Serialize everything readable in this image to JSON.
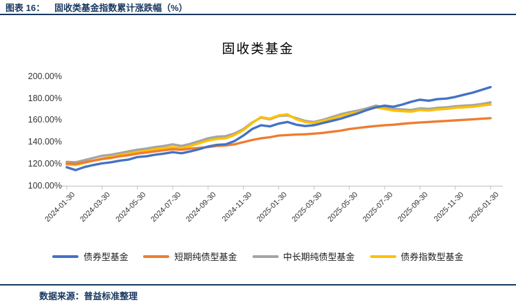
{
  "header": {
    "label": "图表 16：",
    "title": "固收类基金指数累计涨跌幅（%）"
  },
  "footer": {
    "source": "数据来源：普益标准整理"
  },
  "colors": {
    "accent_navy": "#17375E",
    "axis_line": "#BFBFBF"
  },
  "chart_data": {
    "type": "line",
    "title": "固收类基金",
    "xlabel": "",
    "ylabel": "",
    "ylim": [
      100,
      200
    ],
    "grid": false,
    "legend_position": "bottom",
    "y_tick_labels": [
      "200.00%",
      "180.00%",
      "160.00%",
      "140.00%",
      "120.00%",
      "100.00%"
    ],
    "x_tick_labels": [
      "2024-01-30",
      "2024-03-30",
      "2024-05-30",
      "2024-07-30",
      "2024-09-30",
      "2024-11-30",
      "2025-01-30",
      "2025-03-30",
      "2025-05-30",
      "2025-07-30",
      "2025-09-30",
      "2025-11-30",
      "2026-01-30"
    ],
    "x_points_per_tick": 4,
    "draw_order": [
      2,
      3,
      1,
      0
    ],
    "series": [
      {
        "key": "bond-fund",
        "name": "债券型基金",
        "color": "#4472C4",
        "values": [
          117,
          114.3,
          117.2,
          119,
          120.5,
          121.5,
          123,
          124,
          126.3,
          127,
          128.5,
          129.5,
          130.8,
          129.8,
          131.5,
          133.5,
          136,
          137.5,
          138,
          141,
          146,
          152,
          155.5,
          154.5,
          157,
          158.5,
          156,
          154.8,
          155.5,
          157.5,
          159.5,
          161.5,
          164,
          166.5,
          169.5,
          172,
          173.5,
          172.5,
          174.5,
          177,
          179,
          178,
          179.5,
          180,
          181.5,
          183.5,
          185.5,
          188,
          190.5
        ]
      },
      {
        "key": "short-term-pure-bond-fund",
        "name": "短期纯债型基金",
        "color": "#ED7D31",
        "values": [
          120.5,
          120,
          121.5,
          123,
          124.5,
          125.5,
          127,
          128,
          129.5,
          130.5,
          131.5,
          132.5,
          133.5,
          133,
          134,
          134.8,
          135.5,
          136.5,
          137,
          138,
          140,
          142,
          143.5,
          144.5,
          146,
          146.5,
          147,
          147.2,
          147.8,
          148.5,
          149.5,
          150.5,
          152,
          153,
          154,
          154.8,
          155.5,
          156,
          156.8,
          157.5,
          158,
          158.5,
          159,
          159.5,
          160,
          160.5,
          161,
          161.5,
          162
        ]
      },
      {
        "key": "mid-long-term-pure-bond-fund",
        "name": "中长期纯债型基金",
        "color": "#A5A5A5",
        "values": [
          122,
          121.5,
          123.5,
          125.5,
          127.5,
          128.5,
          130,
          131.5,
          133,
          134,
          135.5,
          136.5,
          138,
          136.5,
          138.5,
          141,
          143.5,
          145,
          145.5,
          148,
          152,
          158,
          162.5,
          161,
          164,
          164.5,
          162,
          159.5,
          158.5,
          160.5,
          163,
          165.5,
          167.5,
          169,
          171,
          173.5,
          172,
          170.5,
          170,
          169.5,
          171,
          170.5,
          171.5,
          172,
          173,
          173.5,
          174,
          175,
          176.5
        ]
      },
      {
        "key": "bond-index-fund",
        "name": "债券指数型基金",
        "color": "#FFC000",
        "values": [
          119.5,
          119,
          121,
          123,
          125,
          126.5,
          128,
          129.5,
          131,
          132,
          133.5,
          134.5,
          135.5,
          134.5,
          136.5,
          139,
          141.5,
          143,
          143.5,
          146.5,
          151,
          157.5,
          163,
          161.5,
          164.5,
          165.5,
          161,
          158.5,
          157.5,
          159.5,
          161.5,
          164,
          166,
          167.5,
          169.5,
          172,
          170.5,
          169,
          168.5,
          168,
          169.5,
          169,
          170,
          170.5,
          171.5,
          172,
          172.5,
          173.5,
          174.5
        ]
      }
    ]
  }
}
